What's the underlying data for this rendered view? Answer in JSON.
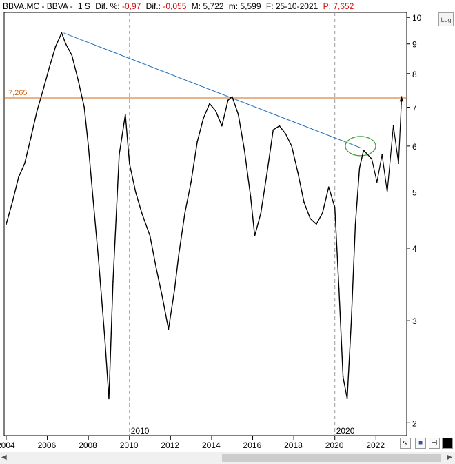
{
  "header": {
    "symbol": "BBVA.MC - BBVA -",
    "timeframe": "1 S",
    "dif_pct_label": "Dif. %:",
    "dif_pct_value": "-0,97",
    "dif_label": "Dif.:",
    "dif_value": "-0,055",
    "max_label": "M:",
    "max_value": "5,722",
    "min_label": "m:",
    "min_value": "5,599",
    "date_label": "F:",
    "date_value": "25-10-2021",
    "p_label": "P",
    "p_value": ": 7,652"
  },
  "log_button": "Log",
  "horizontal_level": {
    "label": "7,265",
    "value": 7.265,
    "color": "#d2691e"
  },
  "trendline": {
    "color": "#1f6fbf",
    "from": [
      2006.8,
      9.4
    ],
    "to": [
      2021.3,
      5.95
    ]
  },
  "highlight_circle": {
    "center": [
      2021.25,
      6.0
    ],
    "color": "#3a9a3a"
  },
  "tools": {
    "chart_icon": "chart-type-icon",
    "save_icon": "save-icon",
    "pin_icon": "pin-icon",
    "fill_icon": "color-swatch-icon"
  },
  "chart_data": {
    "type": "line",
    "title": "",
    "xlabel": "",
    "ylabel": "",
    "yscale": "log",
    "xlim": [
      2003.9,
      2023.5
    ],
    "ylim": [
      1.9,
      10.2
    ],
    "x_ticks": [
      "2004",
      "2006",
      "2008",
      "2010",
      "2012",
      "2014",
      "2016",
      "2018",
      "2020",
      "2022"
    ],
    "x_tick_values": [
      2004,
      2006,
      2008,
      2010,
      2012,
      2014,
      2016,
      2018,
      2020,
      2022
    ],
    "x_secondary_labels": [
      "2010",
      "2020"
    ],
    "x_secondary_values": [
      2010,
      2020
    ],
    "y_ticks": [
      "10",
      "9",
      "8",
      "7",
      "6",
      "5",
      "4",
      "3",
      "2"
    ],
    "y_tick_values": [
      10,
      9,
      8,
      7,
      6,
      5,
      4,
      3,
      2
    ],
    "grid": false,
    "series": [
      {
        "color": "#000000",
        "x": [
          2004.0,
          2004.3,
          2004.6,
          2004.9,
          2005.2,
          2005.5,
          2005.8,
          2006.1,
          2006.4,
          2006.7,
          2006.9,
          2007.2,
          2007.5,
          2007.8,
          2008.0,
          2008.2,
          2008.5,
          2008.8,
          2009.0,
          2009.2,
          2009.5,
          2009.8,
          2010.0,
          2010.3,
          2010.6,
          2011.0,
          2011.3,
          2011.6,
          2011.9,
          2012.2,
          2012.4,
          2012.7,
          2013.0,
          2013.3,
          2013.6,
          2013.9,
          2014.2,
          2014.5,
          2014.8,
          2015.0,
          2015.3,
          2015.6,
          2015.9,
          2016.1,
          2016.4,
          2016.7,
          2017.0,
          2017.3,
          2017.6,
          2017.9,
          2018.2,
          2018.5,
          2018.8,
          2019.1,
          2019.4,
          2019.7,
          2020.0,
          2020.2,
          2020.4,
          2020.6,
          2020.8,
          2021.0,
          2021.2,
          2021.4,
          2021.6,
          2021.8
        ],
        "values": [
          4.4,
          4.8,
          5.3,
          5.6,
          6.2,
          6.9,
          7.5,
          8.2,
          8.9,
          9.4,
          9.0,
          8.6,
          7.8,
          7.0,
          6.0,
          5.0,
          3.8,
          2.8,
          2.2,
          3.5,
          5.8,
          6.8,
          5.6,
          5.0,
          4.6,
          4.2,
          3.7,
          3.3,
          2.9,
          3.4,
          3.9,
          4.6,
          5.2,
          6.1,
          6.7,
          7.1,
          6.9,
          6.5,
          7.2,
          7.3,
          6.8,
          5.9,
          4.9,
          4.2,
          4.6,
          5.4,
          6.4,
          6.5,
          6.3,
          6.0,
          5.4,
          4.8,
          4.5,
          4.4,
          4.6,
          5.1,
          4.7,
          3.4,
          2.4,
          2.2,
          3.0,
          4.4,
          5.5,
          5.9,
          5.8,
          5.7
        ]
      },
      {
        "color": "#000000",
        "x": [
          2021.8,
          2022.05,
          2022.3,
          2022.55,
          2022.85,
          2023.1,
          2023.25
        ],
        "values": [
          5.7,
          5.2,
          5.8,
          5.0,
          6.5,
          5.6,
          7.3
        ]
      }
    ]
  }
}
